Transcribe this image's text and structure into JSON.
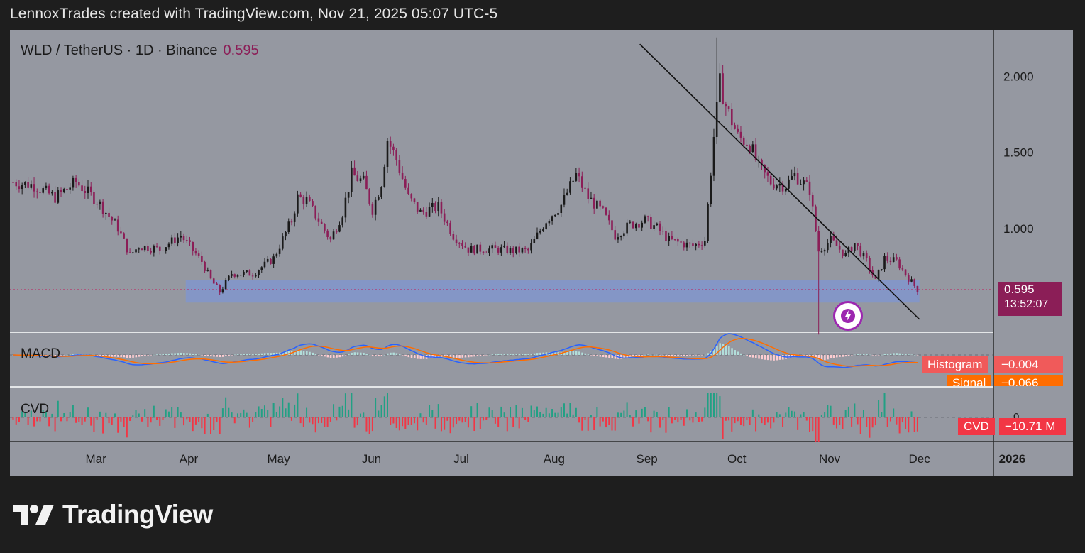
{
  "header": {
    "caption": "LennoxTrades created with TradingView.com, Nov 21, 2025 05:07 UTC-5"
  },
  "legend": {
    "symbol": "WLD / TetherUS · 1D · Binance",
    "last_price": "0.595"
  },
  "price_tag": {
    "value": "0.595",
    "countdown": "13:52:07"
  },
  "panes": {
    "macd": {
      "label": "MACD",
      "histogram_label": "Histogram",
      "histogram_value": "−0.004",
      "signal_label": "Signal",
      "signal_value": "−0.066"
    },
    "cvd": {
      "label": "CVD",
      "tag_label": "CVD",
      "tag_value": "−10.71 M",
      "zero_tick": "0"
    }
  },
  "brand": {
    "name": "TradingView"
  },
  "colors": {
    "background": "#9598a1",
    "candle_up": "#1a1a1a",
    "candle_down": "#8b1e57",
    "support_zone": "#7f95d3",
    "macd_line": "#2962ff",
    "signal_line": "#ff6d00",
    "cvd_up": "#22a084",
    "cvd_down": "#f23645",
    "price_tag": "#8b1e57",
    "alert_icon": "#9c27b0"
  },
  "icons": {
    "alert": "lightning-icon",
    "logo": "tradingview-logo-icon"
  },
  "chart_data": {
    "type": "candlestick",
    "interval": "1D",
    "y_axis_ticks": [
      "2.000",
      "1.500",
      "1.000"
    ],
    "x_axis_ticks": [
      "Mar",
      "Apr",
      "May",
      "Jun",
      "Jul",
      "Aug",
      "Sep",
      "Oct",
      "Nov",
      "Dec",
      "2026"
    ],
    "ylim": [
      0.32,
      2.3
    ],
    "last_price": 0.595,
    "support_zone": {
      "from_date": "2025-03-31",
      "to_date": "2025-12-01",
      "low": 0.51,
      "high": 0.66
    },
    "trendline": {
      "start": [
        "2025-09-01",
        2.15
      ],
      "end": [
        "2025-12-01",
        0.4
      ]
    },
    "price_anchors": [
      [
        "2025-02-01",
        1.3
      ],
      [
        "2025-02-08",
        1.28
      ],
      [
        "2025-02-15",
        1.2
      ],
      [
        "2025-02-22",
        1.3
      ],
      [
        "2025-03-01",
        1.18
      ],
      [
        "2025-03-08",
        1.0
      ],
      [
        "2025-03-12",
        0.82
      ],
      [
        "2025-03-15",
        0.88
      ],
      [
        "2025-03-22",
        0.86
      ],
      [
        "2025-03-29",
        0.95
      ],
      [
        "2025-04-05",
        0.78
      ],
      [
        "2025-04-08",
        0.66
      ],
      [
        "2025-04-11",
        0.58
      ],
      [
        "2025-04-15",
        0.7
      ],
      [
        "2025-04-22",
        0.7
      ],
      [
        "2025-04-29",
        0.8
      ],
      [
        "2025-05-05",
        1.05
      ],
      [
        "2025-05-07",
        1.2
      ],
      [
        "2025-05-10",
        1.18
      ],
      [
        "2025-05-14",
        1.05
      ],
      [
        "2025-05-18",
        0.92
      ],
      [
        "2025-05-22",
        1.1
      ],
      [
        "2025-05-25",
        1.35
      ],
      [
        "2025-05-29",
        1.3
      ],
      [
        "2025-06-01",
        1.12
      ],
      [
        "2025-06-04",
        1.3
      ],
      [
        "2025-06-06",
        1.58
      ],
      [
        "2025-06-09",
        1.45
      ],
      [
        "2025-06-13",
        1.2
      ],
      [
        "2025-06-17",
        1.1
      ],
      [
        "2025-06-23",
        1.14
      ],
      [
        "2025-06-28",
        0.95
      ],
      [
        "2025-07-03",
        0.86
      ],
      [
        "2025-07-08",
        0.86
      ],
      [
        "2025-07-13",
        0.86
      ],
      [
        "2025-07-18",
        0.85
      ],
      [
        "2025-07-23",
        0.85
      ],
      [
        "2025-07-29",
        1.05
      ],
      [
        "2025-08-03",
        1.15
      ],
      [
        "2025-08-08",
        1.35
      ],
      [
        "2025-08-12",
        1.2
      ],
      [
        "2025-08-17",
        1.1
      ],
      [
        "2025-08-21",
        0.95
      ],
      [
        "2025-08-26",
        1.02
      ],
      [
        "2025-08-31",
        1.05
      ],
      [
        "2025-09-04",
        1.0
      ],
      [
        "2025-09-08",
        0.92
      ],
      [
        "2025-09-12",
        0.9
      ],
      [
        "2025-09-16",
        0.88
      ],
      [
        "2025-09-20",
        0.92
      ],
      [
        "2025-09-23",
        1.6
      ],
      [
        "2025-09-25",
        1.95
      ],
      [
        "2025-09-27",
        1.8
      ],
      [
        "2025-10-01",
        1.6
      ],
      [
        "2025-10-05",
        1.55
      ],
      [
        "2025-10-08",
        1.4
      ],
      [
        "2025-10-12",
        1.3
      ],
      [
        "2025-10-17",
        1.28
      ],
      [
        "2025-10-20",
        1.35
      ],
      [
        "2025-10-25",
        1.25
      ],
      [
        "2025-10-28",
        0.85
      ],
      [
        "2025-11-01",
        0.92
      ],
      [
        "2025-11-06",
        0.82
      ],
      [
        "2025-11-09",
        0.9
      ],
      [
        "2025-11-13",
        0.78
      ],
      [
        "2025-11-16",
        0.65
      ],
      [
        "2025-11-19",
        0.8
      ],
      [
        "2025-11-23",
        0.78
      ],
      [
        "2025-11-27",
        0.67
      ],
      [
        "2025-11-30",
        0.595
      ]
    ],
    "notable_wicks": [
      {
        "date": "2025-09-24",
        "high": 2.25
      },
      {
        "date": "2025-09-25",
        "high": 2.08
      },
      {
        "date": "2025-10-28",
        "low": 0.3
      }
    ]
  }
}
